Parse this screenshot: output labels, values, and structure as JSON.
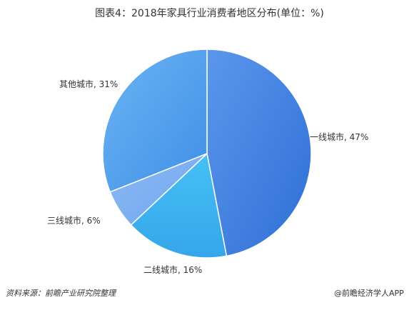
{
  "chart_data": {
    "type": "pie",
    "title": "图表4：2018年家具行业消费者地区分布(单位：%)",
    "slices": [
      {
        "label": "一线城市, 47%",
        "value": 47,
        "color": "#3f7fe0"
      },
      {
        "label": "二线城市, 16%",
        "value": 16,
        "color": "#3fb2ef"
      },
      {
        "label": "三线城市, 6%",
        "value": 6,
        "color": "#7fb0f2"
      },
      {
        "label": "其他城市, 31%",
        "value": 31,
        "color": "#55a3ef"
      }
    ],
    "start_angle_deg": 0,
    "direction": "clockwise"
  },
  "footer": {
    "source": "资料来源：前瞻产业研究院整理",
    "brand": "@前瞻经济学人APP"
  }
}
